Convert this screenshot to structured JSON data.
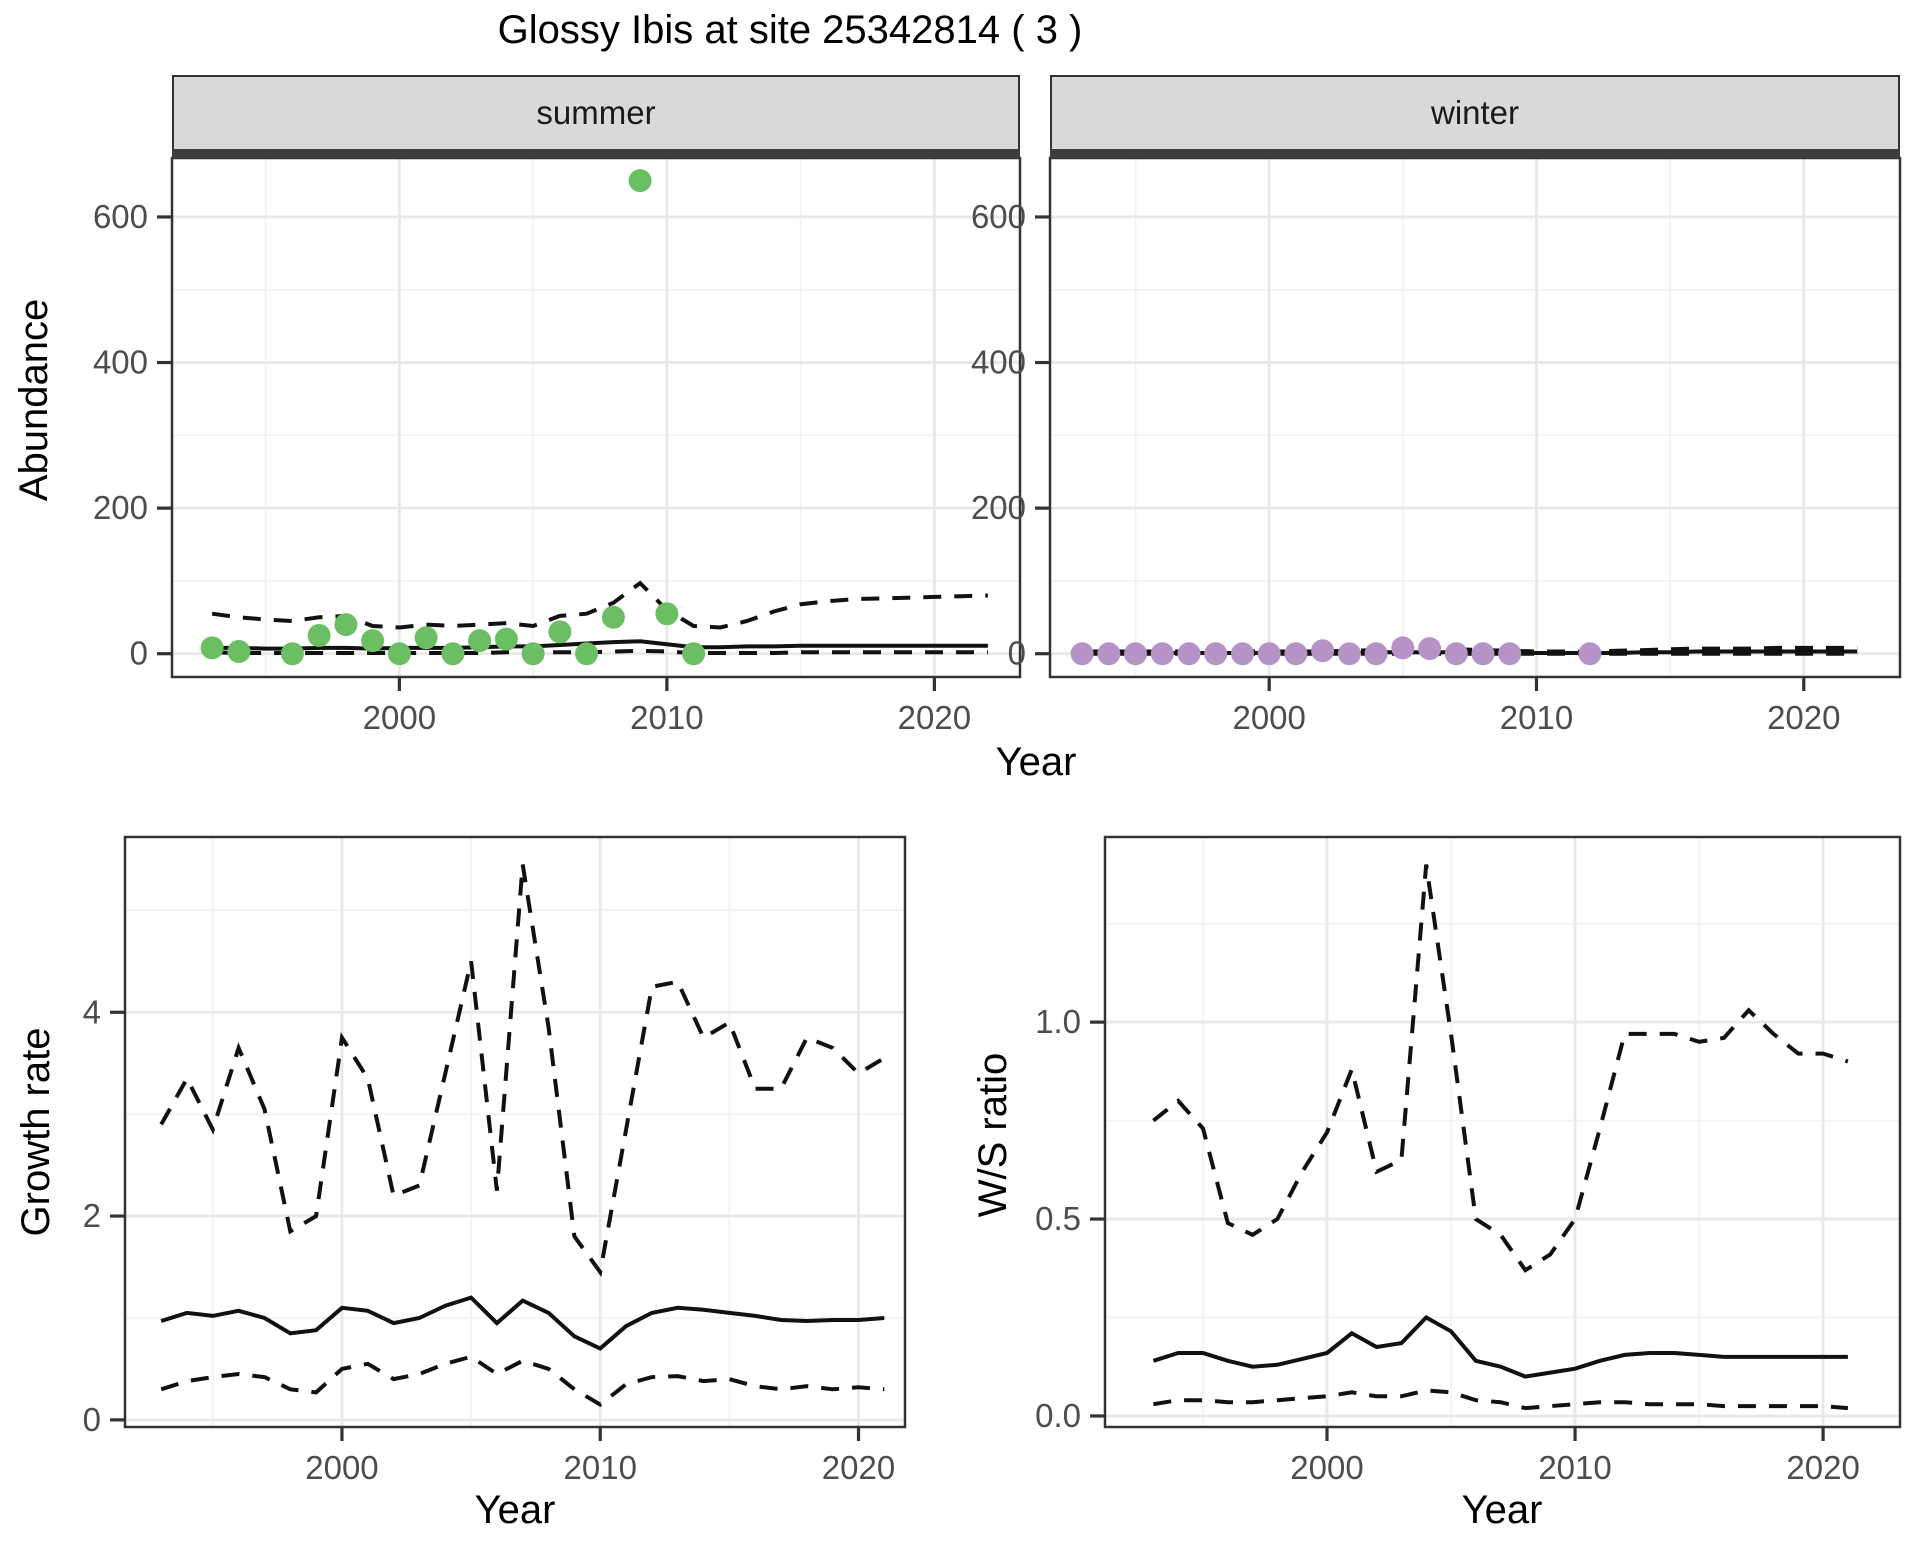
{
  "title": "Glossy Ibis at site 25342814 ( 3 )",
  "facets": [
    "summer",
    "winter"
  ],
  "axis_titles": {
    "abundance": "Abundance",
    "year": "Year",
    "growth": "Growth rate",
    "ws": "W/S ratio"
  },
  "colors": {
    "summer_point": "#6cbe63",
    "winter_point": "#b593c7",
    "line": "#111111",
    "strip_bg": "#d9d9d9",
    "panel_border": "#333333",
    "grid_major": "#e8e8e8",
    "grid_minor": "#f2f2f2",
    "tick_text": "#4d4d4d"
  },
  "chart_data": [
    {
      "id": "abundance_summer",
      "type": "scatter",
      "facet": "summer",
      "xlabel": "Year",
      "ylabel": "Abundance",
      "xlim": [
        1991.5,
        2023.2
      ],
      "ylim": [
        -32,
        681
      ],
      "xticks": [
        2000,
        2010,
        2020
      ],
      "xtick_labels": [
        "2000",
        "2010",
        "2020"
      ],
      "yticks": [
        0,
        200,
        400,
        600
      ],
      "ytick_labels": [
        "0",
        "200",
        "400",
        "600"
      ],
      "xminor": [
        1995,
        2005,
        2015
      ],
      "yminor": [
        100,
        300,
        500
      ],
      "grid": true,
      "years": [
        1993,
        1994,
        1995,
        1996,
        1997,
        1998,
        1999,
        2000,
        2001,
        2002,
        2003,
        2004,
        2005,
        2006,
        2007,
        2008,
        2009,
        2010,
        2011,
        2012,
        2013,
        2014,
        2015,
        2016,
        2017,
        2018,
        2019,
        2020,
        2021,
        2022
      ],
      "series": [
        {
          "name": "lower_ci",
          "style": "dashed",
          "values": [
            2,
            1,
            1,
            1,
            1,
            1,
            1,
            1,
            1,
            1,
            1,
            2,
            2,
            2,
            2,
            3,
            4,
            3,
            1,
            1,
            1,
            1,
            2,
            2,
            2,
            2,
            2,
            2,
            2,
            2
          ]
        },
        {
          "name": "upper_ci",
          "style": "dashed",
          "values": [
            55,
            50,
            47,
            45,
            50,
            52,
            38,
            36,
            40,
            38,
            40,
            42,
            38,
            52,
            55,
            70,
            97,
            60,
            38,
            36,
            45,
            58,
            68,
            72,
            75,
            76,
            77,
            78,
            79,
            80
          ]
        },
        {
          "name": "median",
          "style": "solid",
          "values": [
            8,
            8,
            7,
            7,
            8,
            8,
            7,
            8,
            8,
            8,
            9,
            10,
            10,
            12,
            14,
            16,
            17,
            13,
            9,
            9,
            10,
            10,
            11,
            11,
            11,
            11,
            11,
            11,
            11,
            11
          ]
        }
      ],
      "points": {
        "color_key": "summer_point",
        "years": [
          1993,
          1994,
          1996,
          1997,
          1998,
          1999,
          2000,
          2001,
          2002,
          2003,
          2004,
          2005,
          2006,
          2007,
          2008,
          2009,
          2010,
          2011
        ],
        "values": [
          8,
          3,
          0,
          25,
          40,
          18,
          0,
          22,
          0,
          18,
          20,
          0,
          30,
          0,
          50,
          650,
          55,
          0
        ]
      }
    },
    {
      "id": "abundance_winter",
      "type": "scatter",
      "facet": "winter",
      "xlabel": "Year",
      "ylabel": "Abundance",
      "xlim": [
        1991.8,
        2023.6
      ],
      "ylim": [
        -32,
        681
      ],
      "xticks": [
        2000,
        2010,
        2020
      ],
      "xtick_labels": [
        "2000",
        "2010",
        "2020"
      ],
      "yticks": [
        0,
        200,
        400,
        600
      ],
      "ytick_labels": [
        "0",
        "200",
        "400",
        "600"
      ],
      "xminor": [
        1995,
        2005,
        2015
      ],
      "yminor": [
        100,
        300,
        500
      ],
      "grid": true,
      "years": [
        1993,
        1994,
        1995,
        1996,
        1997,
        1998,
        1999,
        2000,
        2001,
        2002,
        2003,
        2004,
        2005,
        2006,
        2007,
        2008,
        2009,
        2010,
        2011,
        2012,
        2013,
        2014,
        2015,
        2016,
        2017,
        2018,
        2019,
        2020,
        2021,
        2022
      ],
      "series": [
        {
          "name": "lower_ci",
          "style": "dashed",
          "values": [
            0,
            0,
            0,
            0,
            0,
            0,
            0,
            0,
            0,
            0,
            0,
            0,
            0,
            0,
            0,
            0,
            0,
            0,
            0,
            0,
            0,
            0,
            0,
            0,
            0,
            0,
            0,
            0,
            0,
            0
          ]
        },
        {
          "name": "upper_ci",
          "style": "dashed",
          "values": [
            3,
            3,
            3,
            3,
            3,
            3,
            3,
            3,
            3,
            3,
            4,
            5,
            5,
            6,
            6,
            5,
            4,
            3,
            3,
            3,
            4,
            5,
            6,
            7,
            7,
            7,
            8,
            8,
            8,
            8
          ]
        },
        {
          "name": "median",
          "style": "solid",
          "values": [
            1,
            1,
            1,
            1,
            1,
            1,
            1,
            1,
            1,
            1,
            1,
            2,
            2,
            2,
            2,
            2,
            1,
            1,
            1,
            1,
            1,
            2,
            2,
            3,
            3,
            3,
            3,
            3,
            3,
            3
          ]
        }
      ],
      "points": {
        "color_key": "winter_point",
        "years": [
          1993,
          1994,
          1995,
          1996,
          1997,
          1998,
          1999,
          2000,
          2001,
          2002,
          2003,
          2004,
          2005,
          2006,
          2007,
          2008,
          2009,
          2012
        ],
        "values": [
          0,
          0,
          0,
          0,
          0,
          0,
          0,
          0,
          0,
          4,
          0,
          0,
          8,
          7,
          0,
          0,
          0,
          0
        ]
      }
    },
    {
      "id": "growth_rate",
      "type": "line",
      "xlabel": "Year",
      "ylabel": "Growth rate",
      "xlim": [
        1991.6,
        2021.8
      ],
      "ylim": [
        -0.07,
        5.72
      ],
      "xticks": [
        2000,
        2010,
        2020
      ],
      "xtick_labels": [
        "2000",
        "2010",
        "2020"
      ],
      "yticks": [
        0,
        2,
        4
      ],
      "ytick_labels": [
        "0",
        "2",
        "4"
      ],
      "xminor": [
        1995,
        2005,
        2015
      ],
      "yminor": [
        1,
        3,
        5
      ],
      "grid": true,
      "years": [
        1993,
        1994,
        1995,
        1996,
        1997,
        1998,
        1999,
        2000,
        2001,
        2002,
        2003,
        2004,
        2005,
        2006,
        2007,
        2008,
        2009,
        2010,
        2011,
        2012,
        2013,
        2014,
        2015,
        2016,
        2017,
        2018,
        2019,
        2020,
        2021
      ],
      "series": [
        {
          "name": "lower_ci",
          "style": "dashed",
          "values": [
            0.3,
            0.38,
            0.42,
            0.45,
            0.42,
            0.3,
            0.27,
            0.5,
            0.55,
            0.4,
            0.45,
            0.55,
            0.62,
            0.45,
            0.58,
            0.5,
            0.3,
            0.15,
            0.35,
            0.42,
            0.43,
            0.38,
            0.4,
            0.33,
            0.3,
            0.33,
            0.3,
            0.32,
            0.3
          ]
        },
        {
          "name": "upper_ci",
          "style": "dashed",
          "values": [
            2.9,
            3.35,
            2.85,
            3.65,
            3.05,
            1.85,
            2.0,
            3.75,
            3.35,
            2.2,
            2.3,
            3.4,
            4.5,
            2.25,
            5.45,
            3.85,
            1.8,
            1.45,
            2.85,
            4.25,
            4.3,
            3.75,
            3.9,
            3.25,
            3.25,
            3.75,
            3.65,
            3.4,
            3.55
          ]
        },
        {
          "name": "median",
          "style": "solid",
          "values": [
            0.97,
            1.05,
            1.02,
            1.07,
            1.0,
            0.85,
            0.88,
            1.1,
            1.07,
            0.95,
            1.0,
            1.12,
            1.2,
            0.95,
            1.17,
            1.05,
            0.82,
            0.7,
            0.92,
            1.05,
            1.1,
            1.08,
            1.05,
            1.02,
            0.98,
            0.97,
            0.98,
            0.98,
            1.0
          ]
        }
      ]
    },
    {
      "id": "ws_ratio",
      "type": "line",
      "xlabel": "Year",
      "ylabel": "W/S ratio",
      "xlim": [
        1991.05,
        2023.1
      ],
      "ylim": [
        -0.028,
        1.47
      ],
      "xticks": [
        2000,
        2010,
        2020
      ],
      "xtick_labels": [
        "2000",
        "2010",
        "2020"
      ],
      "yticks": [
        0,
        0.5,
        1.0
      ],
      "ytick_labels": [
        "0.0",
        "0.5",
        "1.0"
      ],
      "xminor": [
        1995,
        2005,
        2015
      ],
      "yminor": [
        0.25,
        0.75,
        1.25
      ],
      "grid": true,
      "years": [
        1993,
        1994,
        1995,
        1996,
        1997,
        1998,
        1999,
        2000,
        2001,
        2002,
        2003,
        2004,
        2005,
        2006,
        2007,
        2008,
        2009,
        2010,
        2011,
        2012,
        2013,
        2014,
        2015,
        2016,
        2017,
        2018,
        2019,
        2020,
        2021
      ],
      "series": [
        {
          "name": "lower_ci",
          "style": "dashed",
          "values": [
            0.03,
            0.04,
            0.04,
            0.035,
            0.035,
            0.04,
            0.045,
            0.05,
            0.06,
            0.05,
            0.05,
            0.065,
            0.06,
            0.04,
            0.035,
            0.02,
            0.025,
            0.03,
            0.035,
            0.035,
            0.03,
            0.03,
            0.03,
            0.025,
            0.025,
            0.025,
            0.025,
            0.025,
            0.02
          ]
        },
        {
          "name": "upper_ci",
          "style": "dashed",
          "values": [
            0.75,
            0.8,
            0.73,
            0.49,
            0.46,
            0.5,
            0.62,
            0.72,
            0.88,
            0.62,
            0.65,
            1.4,
            0.97,
            0.5,
            0.46,
            0.37,
            0.41,
            0.5,
            0.73,
            0.97,
            0.97,
            0.97,
            0.95,
            0.96,
            1.03,
            0.97,
            0.92,
            0.92,
            0.9
          ]
        },
        {
          "name": "median",
          "style": "solid",
          "values": [
            0.14,
            0.16,
            0.16,
            0.14,
            0.125,
            0.13,
            0.145,
            0.16,
            0.21,
            0.175,
            0.185,
            0.25,
            0.215,
            0.14,
            0.125,
            0.1,
            0.11,
            0.12,
            0.14,
            0.155,
            0.16,
            0.16,
            0.155,
            0.15,
            0.15,
            0.15,
            0.15,
            0.15,
            0.15
          ]
        }
      ]
    }
  ]
}
